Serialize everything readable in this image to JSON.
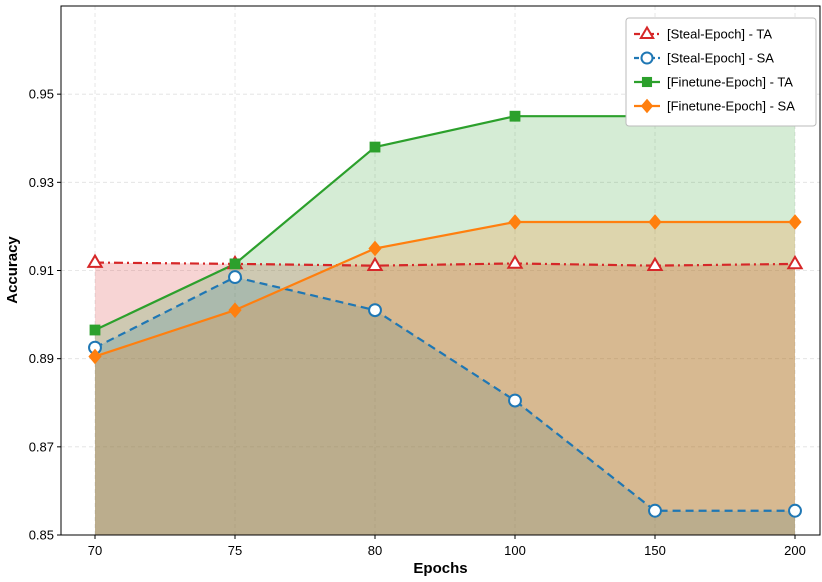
{
  "chart_data": {
    "type": "line",
    "xlabel": "Epochs",
    "ylabel": "Accuracy",
    "categories": [
      "70",
      "75",
      "80",
      "100",
      "150",
      "200"
    ],
    "ylim": [
      0.85,
      0.97
    ],
    "yticks": [
      "0.85",
      "0.87",
      "0.89",
      "0.91",
      "0.93",
      "0.95"
    ],
    "grid": true,
    "legend_position": "top-right",
    "series": [
      {
        "name": "[Steal-Epoch] - TA",
        "values": [
          0.9118,
          0.9115,
          0.9111,
          0.9116,
          0.9111,
          0.9115
        ],
        "color": "#d62728",
        "line": "dashdot",
        "marker": "triangle-open",
        "fill": true
      },
      {
        "name": "[Steal-Epoch] - SA",
        "values": [
          0.8925,
          0.9085,
          0.901,
          0.8805,
          0.8555,
          0.8555
        ],
        "color": "#1f77b4",
        "line": "dashed",
        "marker": "circle-open",
        "fill": true
      },
      {
        "name": "[Finetune-Epoch] - TA",
        "values": [
          0.8965,
          0.9115,
          0.938,
          0.945,
          0.945,
          0.945
        ],
        "color": "#2ca02c",
        "line": "solid",
        "marker": "square",
        "fill": true
      },
      {
        "name": "[Finetune-Epoch] - SA",
        "values": [
          0.8905,
          0.901,
          0.915,
          0.921,
          0.921,
          0.921
        ],
        "color": "#ff7f0e",
        "line": "solid",
        "marker": "diamond",
        "fill": true
      }
    ]
  }
}
